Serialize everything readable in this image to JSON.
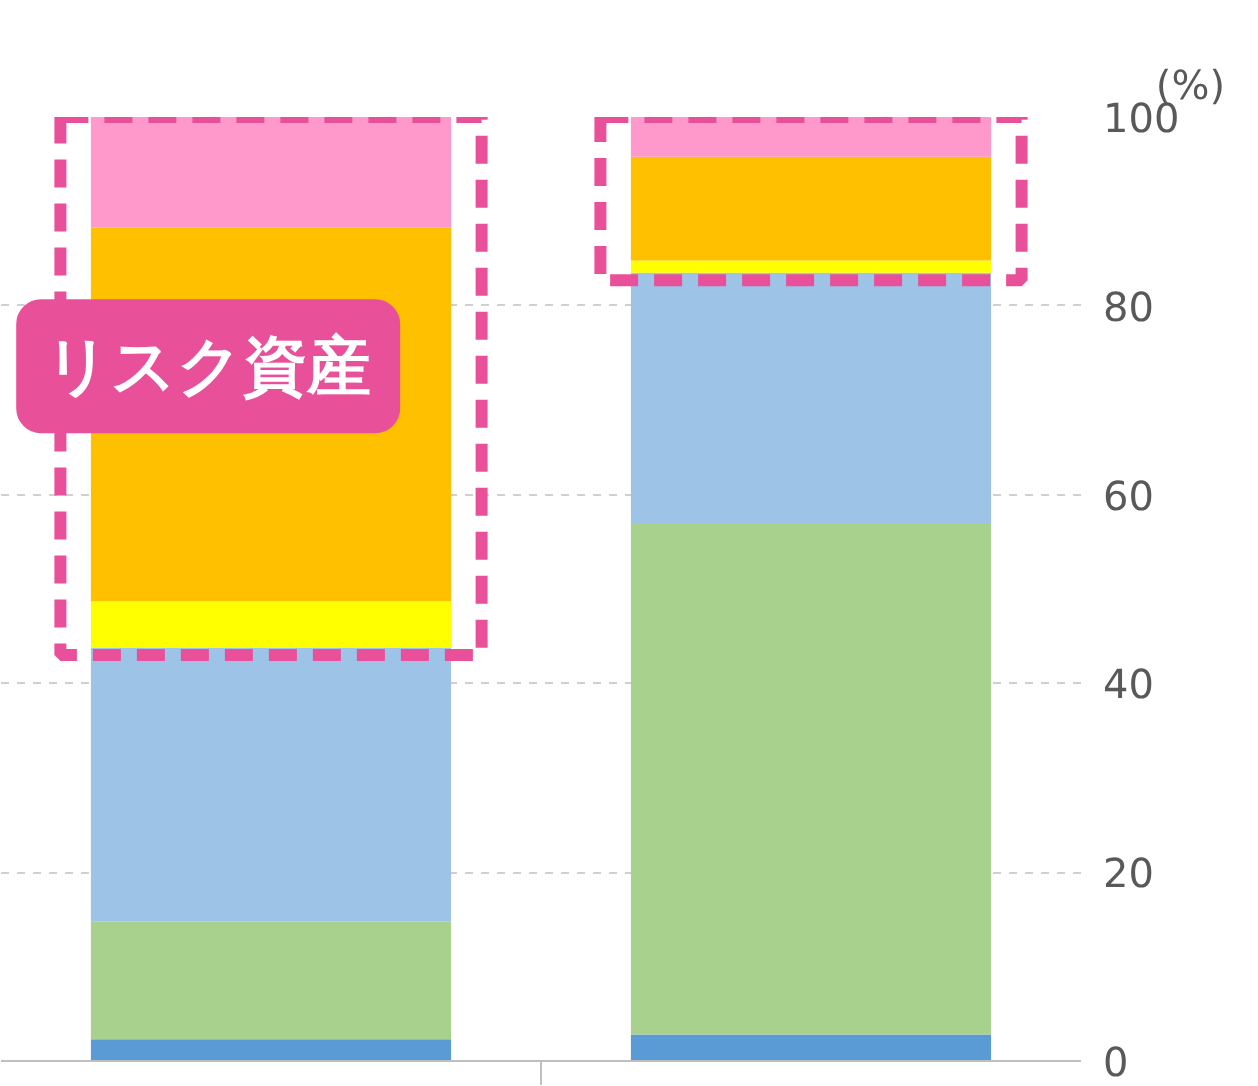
{
  "chart_data": {
    "type": "bar",
    "stacked": true,
    "categories": [
      null,
      null
    ],
    "ylabel": "(%)",
    "ylim": [
      0,
      100
    ],
    "yticks": [
      0,
      20,
      40,
      60,
      80,
      100
    ],
    "grid": "y",
    "series": [
      {
        "color": "#5b9bd5",
        "values": [
          2.3,
          2.8
        ]
      },
      {
        "color": "#a9d18e",
        "values": [
          12.5,
          54.2
        ]
      },
      {
        "color": "#9dc3e6",
        "values": [
          29,
          26.5
        ]
      },
      {
        "color": "#ffff00",
        "values": [
          4.9,
          1.3
        ]
      },
      {
        "color": "#ffc000",
        "values": [
          39.6,
          11
        ]
      },
      {
        "color": "#ff99cc",
        "values": [
          11.7,
          4.2
        ]
      }
    ],
    "annotations": [
      "リスク資産"
    ]
  }
}
